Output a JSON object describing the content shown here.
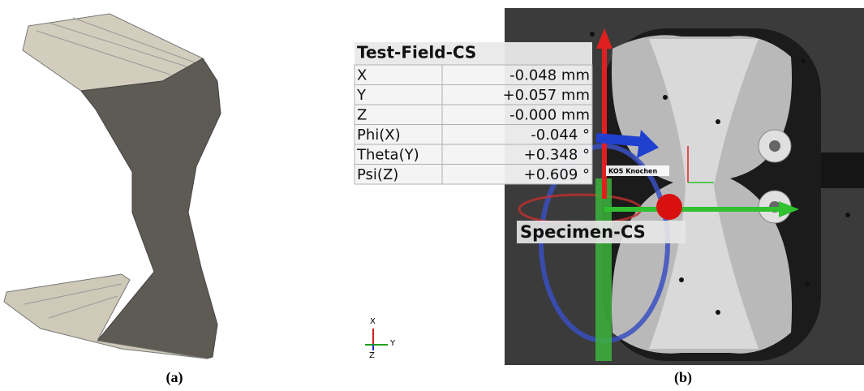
{
  "captions": [
    "(a)",
    "(b)"
  ],
  "table": {
    "title": "Test-Field-CS",
    "rows": [
      [
        "X",
        "-0.048 mm"
      ],
      [
        "Y",
        "+0.057 mm"
      ],
      [
        "Z",
        "-0.000 mm"
      ],
      [
        "Phi(X)",
        "-0.044 °"
      ],
      [
        "Theta(Y)",
        "+0.348 °"
      ],
      [
        "Psi(Z)",
        "+0.609 °"
      ]
    ]
  },
  "labels": {
    "local_cs": "KOS Knochen",
    "specimen_cs": "Specimen-CS"
  },
  "axes": {
    "x": "X",
    "y": "Y",
    "z": "Z"
  }
}
